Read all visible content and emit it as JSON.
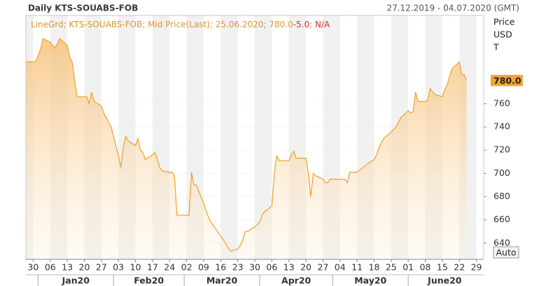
{
  "chart_data": {
    "type": "line",
    "title": "Daily KTS-SOUABS-FOB",
    "date_range": "27.12.2019 - 04.07.2020 (GMT)",
    "legend": [
      {
        "text": "LineGrd; KTS-SOUABS-FOB; Mid Price(Last); 25.06.2020; 780.0",
        "color": "#e0962c"
      },
      {
        "text": "-5.0",
        "color": "#d9312b"
      },
      {
        "text": "; ",
        "color": "#e0962c"
      },
      {
        "text": "N/A",
        "color": "#d9312b"
      }
    ],
    "y_axis_label": [
      "Price",
      "USD",
      "T"
    ],
    "button": "Auto",
    "x": [
      "2019-12-27",
      "2019-12-30",
      "2019-12-31",
      "2020-01-02",
      "2020-01-03",
      "2020-01-06",
      "2020-01-07",
      "2020-01-08",
      "2020-01-09",
      "2020-01-10",
      "2020-01-13",
      "2020-01-14",
      "2020-01-15",
      "2020-01-16",
      "2020-01-17",
      "2020-01-20",
      "2020-01-21",
      "2020-01-22",
      "2020-01-23",
      "2020-01-24",
      "2020-01-27",
      "2020-01-28",
      "2020-01-29",
      "2020-01-30",
      "2020-01-31",
      "2020-02-03",
      "2020-02-04",
      "2020-02-05",
      "2020-02-06",
      "2020-02-07",
      "2020-02-10",
      "2020-02-11",
      "2020-02-12",
      "2020-02-13",
      "2020-02-14",
      "2020-02-17",
      "2020-02-18",
      "2020-02-19",
      "2020-02-20",
      "2020-02-21",
      "2020-02-24",
      "2020-02-25",
      "2020-02-26",
      "2020-02-27",
      "2020-02-28",
      "2020-03-02",
      "2020-03-03",
      "2020-03-04",
      "2020-03-05",
      "2020-03-06",
      "2020-03-09",
      "2020-03-10",
      "2020-03-11",
      "2020-03-12",
      "2020-03-13",
      "2020-03-16",
      "2020-03-17",
      "2020-03-18",
      "2020-03-19",
      "2020-03-20",
      "2020-03-23",
      "2020-03-24",
      "2020-03-25",
      "2020-03-26",
      "2020-03-27",
      "2020-03-30",
      "2020-03-31",
      "2020-04-01",
      "2020-04-02",
      "2020-04-03",
      "2020-04-06",
      "2020-04-07",
      "2020-04-08",
      "2020-04-09",
      "2020-04-13",
      "2020-04-14",
      "2020-04-15",
      "2020-04-16",
      "2020-04-17",
      "2020-04-20",
      "2020-04-21",
      "2020-04-22",
      "2020-04-23",
      "2020-04-24",
      "2020-04-27",
      "2020-04-28",
      "2020-04-29",
      "2020-04-30",
      "2020-05-04",
      "2020-05-05",
      "2020-05-06",
      "2020-05-07",
      "2020-05-08",
      "2020-05-11",
      "2020-05-12",
      "2020-05-13",
      "2020-05-14",
      "2020-05-15",
      "2020-05-18",
      "2020-05-19",
      "2020-05-20",
      "2020-05-21",
      "2020-05-22",
      "2020-05-25",
      "2020-05-26",
      "2020-05-27",
      "2020-05-28",
      "2020-05-29",
      "2020-06-01",
      "2020-06-02",
      "2020-06-03",
      "2020-06-04",
      "2020-06-05",
      "2020-06-08",
      "2020-06-09",
      "2020-06-10",
      "2020-06-11",
      "2020-06-12",
      "2020-06-15",
      "2020-06-16",
      "2020-06-17",
      "2020-06-18",
      "2020-06-19",
      "2020-06-22",
      "2020-06-23",
      "2020-06-24",
      "2020-06-25"
    ],
    "series": [
      {
        "name": "KTS-SOUABS-FOB",
        "color": "#f0a634",
        "values": [
          796,
          796,
          796,
          807,
          816,
          813,
          810,
          808,
          812,
          816,
          810,
          800,
          796,
          780,
          766,
          766,
          766,
          760,
          770,
          762,
          758,
          752,
          748,
          744,
          740,
          715,
          705,
          722,
          732,
          728,
          724,
          730,
          720,
          718,
          712,
          716,
          718,
          712,
          705,
          702,
          701,
          701,
          698,
          664,
          664,
          664,
          664,
          701,
          690,
          690,
          674,
          668,
          662,
          658,
          655,
          646,
          643,
          640,
          636,
          633,
          635,
          638,
          642,
          650,
          650,
          654,
          656,
          658,
          664,
          667,
          672,
          700,
          715,
          711,
          711,
          716,
          719,
          713,
          713,
          713,
          700,
          680,
          700,
          698,
          695,
          692,
          692,
          695,
          695,
          695,
          695,
          692,
          701,
          701,
          703,
          704,
          706,
          708,
          712,
          716,
          722,
          727,
          730,
          736,
          738,
          740,
          744,
          748,
          754,
          752,
          753,
          770,
          762,
          762,
          763,
          773,
          770,
          768,
          766,
          772,
          776,
          784,
          790,
          796,
          785,
          785,
          780
        ]
      }
    ],
    "last_value": {
      "value": 780,
      "label": "780.0"
    },
    "xlim": [
      "2019-12-27",
      "2020-07-02"
    ],
    "xticks": [
      {
        "value": "2019-12-30",
        "label": "30"
      },
      {
        "value": "2020-01-06",
        "label": "06"
      },
      {
        "value": "2020-01-13",
        "label": "13"
      },
      {
        "value": "2020-01-20",
        "label": "20"
      },
      {
        "value": "2020-01-27",
        "label": "27"
      },
      {
        "value": "2020-02-03",
        "label": "03"
      },
      {
        "value": "2020-02-10",
        "label": "10"
      },
      {
        "value": "2020-02-17",
        "label": "17"
      },
      {
        "value": "2020-02-24",
        "label": "24"
      },
      {
        "value": "2020-03-02",
        "label": "02"
      },
      {
        "value": "2020-03-09",
        "label": "09"
      },
      {
        "value": "2020-03-16",
        "label": "16"
      },
      {
        "value": "2020-03-23",
        "label": "23"
      },
      {
        "value": "2020-03-30",
        "label": "30"
      },
      {
        "value": "2020-04-06",
        "label": "06"
      },
      {
        "value": "2020-04-13",
        "label": "13"
      },
      {
        "value": "2020-04-20",
        "label": "20"
      },
      {
        "value": "2020-04-27",
        "label": "27"
      },
      {
        "value": "2020-05-04",
        "label": "04"
      },
      {
        "value": "2020-05-11",
        "label": "11"
      },
      {
        "value": "2020-05-18",
        "label": "18"
      },
      {
        "value": "2020-05-25",
        "label": "25"
      },
      {
        "value": "2020-06-01",
        "label": "01"
      },
      {
        "value": "2020-06-08",
        "label": "08"
      },
      {
        "value": "2020-06-15",
        "label": "15"
      },
      {
        "value": "2020-06-22",
        "label": "22"
      },
      {
        "value": "2020-06-29",
        "label": "29"
      }
    ],
    "months": [
      {
        "value": "2020-01",
        "label": "Jan20"
      },
      {
        "value": "2020-02",
        "label": "Feb20"
      },
      {
        "value": "2020-03",
        "label": "Mar20"
      },
      {
        "value": "2020-04",
        "label": "Apr20"
      },
      {
        "value": "2020-05",
        "label": "May20"
      },
      {
        "value": "2020-06",
        "label": "June20"
      }
    ],
    "ylim": [
      626,
      836
    ],
    "yticks": [
      640,
      660,
      680,
      700,
      720,
      740,
      760
    ],
    "grid": true
  }
}
